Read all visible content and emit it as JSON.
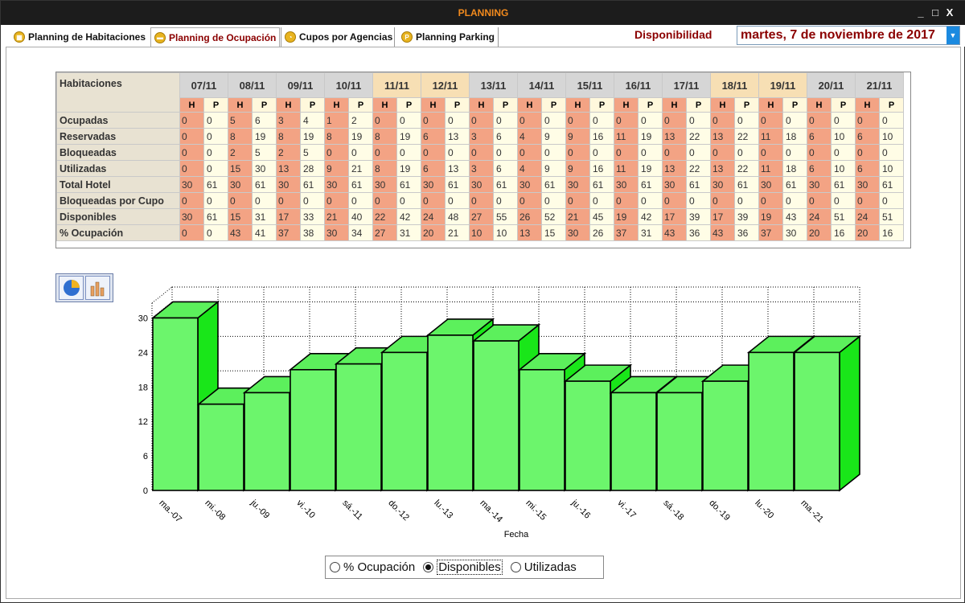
{
  "window": {
    "title": "PLANNING",
    "controls": {
      "minimize": "_",
      "maximize": "□",
      "close": "X"
    }
  },
  "tabs": [
    {
      "label": "Planning de Habitaciones",
      "icon": "calendar-icon"
    },
    {
      "label": "Planning de Ocupación",
      "icon": "bed-icon"
    },
    {
      "label": "Cupos por Agencias",
      "icon": "agency-icon"
    },
    {
      "label": "Planning Parking",
      "icon": "parking-icon",
      "icon_text": "P"
    }
  ],
  "availability": {
    "label": "Disponibilidad",
    "date": "martes, 7 de noviembre de 2017"
  },
  "grid": {
    "corner": "Habitaciones",
    "sub_h": "H",
    "sub_p": "P",
    "dates": [
      "07/11",
      "08/11",
      "09/11",
      "10/11",
      "11/11",
      "12/11",
      "13/11",
      "14/11",
      "15/11",
      "16/11",
      "17/11",
      "18/11",
      "19/11",
      "20/11",
      "21/11"
    ],
    "weekend": [
      false,
      false,
      false,
      false,
      true,
      true,
      false,
      false,
      false,
      false,
      false,
      true,
      true,
      false,
      false
    ],
    "rows": [
      {
        "label": "Ocupadas",
        "values": [
          [
            0,
            0
          ],
          [
            5,
            6
          ],
          [
            3,
            4
          ],
          [
            1,
            2
          ],
          [
            0,
            0
          ],
          [
            0,
            0
          ],
          [
            0,
            0
          ],
          [
            0,
            0
          ],
          [
            0,
            0
          ],
          [
            0,
            0
          ],
          [
            0,
            0
          ],
          [
            0,
            0
          ],
          [
            0,
            0
          ],
          [
            0,
            0
          ],
          [
            0,
            0
          ]
        ]
      },
      {
        "label": "Reservadas",
        "values": [
          [
            0,
            0
          ],
          [
            8,
            19
          ],
          [
            8,
            19
          ],
          [
            8,
            19
          ],
          [
            8,
            19
          ],
          [
            6,
            13
          ],
          [
            3,
            6
          ],
          [
            4,
            9
          ],
          [
            9,
            16
          ],
          [
            11,
            19
          ],
          [
            13,
            22
          ],
          [
            13,
            22
          ],
          [
            11,
            18
          ],
          [
            6,
            10
          ],
          [
            6,
            10
          ]
        ]
      },
      {
        "label": "Bloqueadas",
        "values": [
          [
            0,
            0
          ],
          [
            2,
            5
          ],
          [
            2,
            5
          ],
          [
            0,
            0
          ],
          [
            0,
            0
          ],
          [
            0,
            0
          ],
          [
            0,
            0
          ],
          [
            0,
            0
          ],
          [
            0,
            0
          ],
          [
            0,
            0
          ],
          [
            0,
            0
          ],
          [
            0,
            0
          ],
          [
            0,
            0
          ],
          [
            0,
            0
          ],
          [
            0,
            0
          ]
        ]
      },
      {
        "label": "Utilizadas",
        "values": [
          [
            0,
            0
          ],
          [
            15,
            30
          ],
          [
            13,
            28
          ],
          [
            9,
            21
          ],
          [
            8,
            19
          ],
          [
            6,
            13
          ],
          [
            3,
            6
          ],
          [
            4,
            9
          ],
          [
            9,
            16
          ],
          [
            11,
            19
          ],
          [
            13,
            22
          ],
          [
            13,
            22
          ],
          [
            11,
            18
          ],
          [
            6,
            10
          ],
          [
            6,
            10
          ]
        ]
      },
      {
        "label": "Total Hotel",
        "values": [
          [
            30,
            61
          ],
          [
            30,
            61
          ],
          [
            30,
            61
          ],
          [
            30,
            61
          ],
          [
            30,
            61
          ],
          [
            30,
            61
          ],
          [
            30,
            61
          ],
          [
            30,
            61
          ],
          [
            30,
            61
          ],
          [
            30,
            61
          ],
          [
            30,
            61
          ],
          [
            30,
            61
          ],
          [
            30,
            61
          ],
          [
            30,
            61
          ],
          [
            30,
            61
          ]
        ]
      },
      {
        "label": "Bloqueadas por Cupo",
        "values": [
          [
            0,
            0
          ],
          [
            0,
            0
          ],
          [
            0,
            0
          ],
          [
            0,
            0
          ],
          [
            0,
            0
          ],
          [
            0,
            0
          ],
          [
            0,
            0
          ],
          [
            0,
            0
          ],
          [
            0,
            0
          ],
          [
            0,
            0
          ],
          [
            0,
            0
          ],
          [
            0,
            0
          ],
          [
            0,
            0
          ],
          [
            0,
            0
          ],
          [
            0,
            0
          ]
        ]
      },
      {
        "label": "Disponibles",
        "values": [
          [
            30,
            61
          ],
          [
            15,
            31
          ],
          [
            17,
            33
          ],
          [
            21,
            40
          ],
          [
            22,
            42
          ],
          [
            24,
            48
          ],
          [
            27,
            55
          ],
          [
            26,
            52
          ],
          [
            21,
            45
          ],
          [
            19,
            42
          ],
          [
            17,
            39
          ],
          [
            17,
            39
          ],
          [
            19,
            43
          ],
          [
            24,
            51
          ],
          [
            24,
            51
          ]
        ]
      },
      {
        "label": "% Ocupación",
        "values": [
          [
            0,
            0
          ],
          [
            43,
            41
          ],
          [
            37,
            38
          ],
          [
            30,
            34
          ],
          [
            27,
            31
          ],
          [
            20,
            21
          ],
          [
            10,
            10
          ],
          [
            13,
            15
          ],
          [
            30,
            26
          ],
          [
            37,
            31
          ],
          [
            43,
            36
          ],
          [
            43,
            36
          ],
          [
            37,
            30
          ],
          [
            20,
            16
          ],
          [
            20,
            16
          ]
        ]
      }
    ]
  },
  "chart_toggle": {
    "pie": "pie-chart-icon",
    "bar": "bar-chart-icon"
  },
  "chart_data": {
    "type": "bar",
    "style": "3d",
    "categories": [
      "ma.-07",
      "mi.-08",
      "ju.-09",
      "vi.-10",
      "sá.-11",
      "do.-12",
      "lu.-13",
      "ma.-14",
      "mi.-15",
      "ju.-16",
      "vi.-17",
      "sá.-18",
      "do.-19",
      "lu.-20",
      "ma.-21"
    ],
    "values": [
      30,
      15,
      17,
      21,
      22,
      24,
      27,
      26,
      21,
      19,
      17,
      17,
      19,
      24,
      24
    ],
    "xlabel": "Fecha",
    "ylabel": "",
    "ylim": [
      0,
      33
    ],
    "yticks": [
      0,
      6,
      12,
      18,
      24,
      30
    ],
    "grid": true,
    "color": "#33ff33"
  },
  "radios": {
    "options": [
      "% Ocupación",
      "Disponibles",
      "Utilizadas"
    ],
    "selected": 1
  }
}
